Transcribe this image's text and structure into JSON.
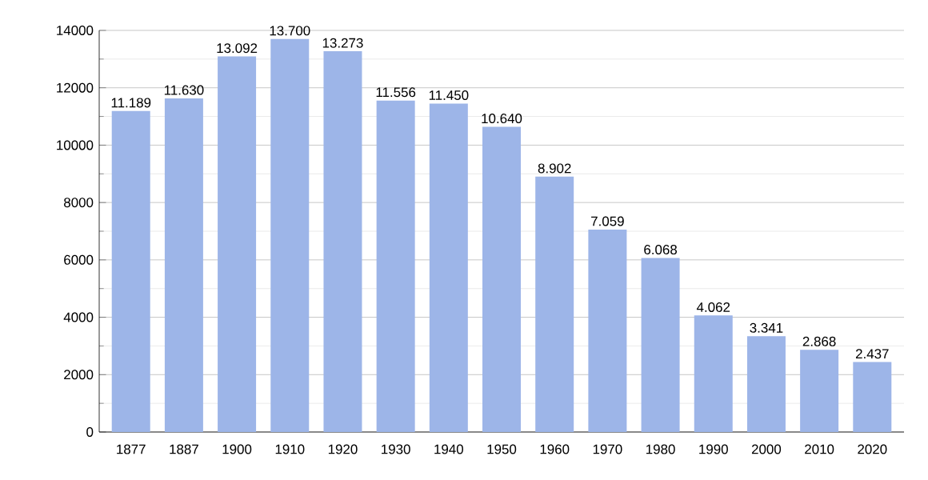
{
  "chart_data": {
    "type": "bar",
    "categories": [
      "1877",
      "1887",
      "1900",
      "1910",
      "1920",
      "1930",
      "1940",
      "1950",
      "1960",
      "1970",
      "1980",
      "1990",
      "2000",
      "2010",
      "2020"
    ],
    "values": [
      11189,
      11630,
      13092,
      13700,
      13273,
      11556,
      11450,
      10640,
      8902,
      7059,
      6068,
      4062,
      3341,
      2868,
      2437
    ],
    "value_labels": [
      "11.189",
      "11.630",
      "13.092",
      "13.700",
      "13.273",
      "11.556",
      "11.450",
      "10.640",
      "8.902",
      "7.059",
      "6.068",
      "4.062",
      "3.341",
      "2.868",
      "2.437"
    ],
    "color": "#9db5e8",
    "ylim": [
      0,
      14000
    ],
    "yticks": [
      0,
      2000,
      4000,
      6000,
      8000,
      10000,
      12000,
      14000
    ],
    "grid": "y"
  }
}
